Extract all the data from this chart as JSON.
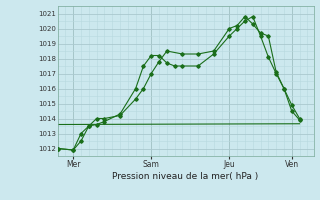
{
  "title": "",
  "xlabel": "Pression niveau de la mer( hPa )",
  "ylabel": "",
  "ylim": [
    1011.5,
    1021.5
  ],
  "yticks": [
    1012,
    1013,
    1014,
    1015,
    1016,
    1017,
    1018,
    1019,
    1020,
    1021
  ],
  "bg_color": "#cce8ee",
  "grid_major_color": "#aac8ce",
  "grid_minor_color": "#b8d8de",
  "line_color": "#1a6e1a",
  "xtick_labels": [
    "Mer",
    "Sam",
    "Jeu",
    "Ven"
  ],
  "xtick_positions": [
    0.5,
    3.0,
    5.5,
    7.5
  ],
  "xlim": [
    0.0,
    8.2
  ],
  "series1_x": [
    0.0,
    0.5,
    0.75,
    1.0,
    1.25,
    1.5,
    2.0,
    2.5,
    2.75,
    3.0,
    3.25,
    3.5,
    3.75,
    4.0,
    4.5,
    5.0,
    5.5,
    5.75,
    6.0,
    6.25,
    6.5,
    6.75,
    7.0,
    7.25,
    7.5,
    7.75
  ],
  "series1_y": [
    1012.0,
    1011.9,
    1012.5,
    1013.5,
    1013.6,
    1013.8,
    1014.3,
    1016.0,
    1017.5,
    1018.2,
    1018.2,
    1017.7,
    1017.5,
    1017.5,
    1017.5,
    1018.3,
    1019.5,
    1020.0,
    1020.5,
    1020.8,
    1019.5,
    1018.1,
    1017.0,
    1016.0,
    1014.9,
    1014.0
  ],
  "series2_x": [
    0.0,
    0.5,
    0.75,
    1.0,
    1.25,
    1.5,
    2.0,
    2.5,
    2.75,
    3.0,
    3.25,
    3.5,
    4.0,
    4.5,
    5.0,
    5.5,
    5.75,
    6.0,
    6.25,
    6.5,
    6.75,
    7.0,
    7.25,
    7.5,
    7.75
  ],
  "series2_y": [
    1012.0,
    1011.9,
    1013.0,
    1013.5,
    1014.0,
    1014.0,
    1014.2,
    1015.3,
    1016.0,
    1017.0,
    1017.8,
    1018.5,
    1018.3,
    1018.3,
    1018.5,
    1020.0,
    1020.2,
    1020.8,
    1020.3,
    1019.7,
    1019.5,
    1017.1,
    1016.0,
    1014.5,
    1013.9
  ],
  "series3_x": [
    0.0,
    7.75
  ],
  "series3_y": [
    1013.6,
    1013.65
  ],
  "spine_color": "#7aaa99"
}
